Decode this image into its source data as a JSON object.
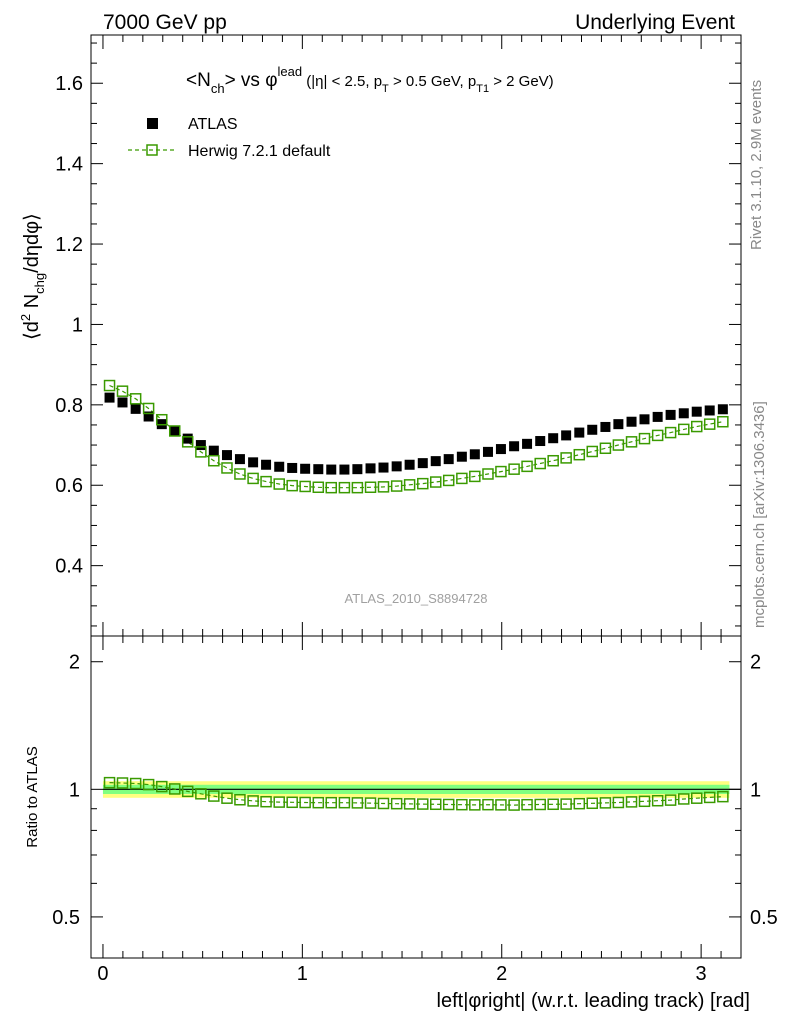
{
  "header": {
    "left": "7000 GeV pp",
    "right": "Underlying Event"
  },
  "side_labels": {
    "top": "Rivet 3.1.10,  2.9M events",
    "bottom": "mcplots.cern.ch [arXiv:1306.3436]"
  },
  "watermark": "ATLAS_2010_S8894728",
  "title": {
    "prefix": "<N",
    "sub1": "ch",
    "mid": "> vs ",
    "phi": "φ",
    "sup": "lead",
    "cond_a": " (|η| < 2.5, p",
    "sub_t": "T",
    "cond_b": " > 0.5 GeV, p",
    "sub_t1": "T1",
    "cond_c": " > 2 GeV)"
  },
  "ylabel_main": {
    "pre": "⟨d",
    "sup2": "2",
    "mid": " N",
    "sub": "chg",
    "post": "/dηdφ⟩"
  },
  "ylabel_ratio": "Ratio to ATLAS",
  "xlabel": "left|φright| (w.r.t. leading track) [rad]",
  "legend": [
    {
      "label": "ATLAS",
      "color": "#000000"
    },
    {
      "label": "Herwig 7.2.1 default",
      "color": "#3a9a00"
    }
  ],
  "colors": {
    "mc": "#3a9a00",
    "band_outer": "#ffff80",
    "band_inner": "#80ff80"
  },
  "chart_data": [
    {
      "panel": "main",
      "type": "scatter",
      "xlim": [
        -0.06,
        3.2
      ],
      "ylim": [
        0.225,
        1.72
      ],
      "y_ticks": [
        0.4,
        0.6,
        0.8,
        1,
        1.2,
        1.4,
        1.6
      ],
      "y_tick_labels": [
        "0.4",
        "0.6",
        "0.8",
        "1",
        "1.2",
        "1.4",
        "1.6"
      ],
      "x": [
        0.033,
        0.098,
        0.164,
        0.229,
        0.295,
        0.36,
        0.425,
        0.491,
        0.556,
        0.622,
        0.687,
        0.753,
        0.818,
        0.884,
        0.949,
        1.014,
        1.08,
        1.145,
        1.211,
        1.276,
        1.342,
        1.407,
        1.473,
        1.538,
        1.604,
        1.669,
        1.734,
        1.8,
        1.865,
        1.931,
        1.996,
        2.062,
        2.127,
        2.193,
        2.258,
        2.323,
        2.389,
        2.454,
        2.52,
        2.585,
        2.651,
        2.716,
        2.782,
        2.847,
        2.913,
        2.978,
        3.043,
        3.109
      ],
      "series": [
        {
          "name": "ATLAS",
          "values": [
            0.818,
            0.806,
            0.79,
            0.771,
            0.752,
            0.734,
            0.716,
            0.7,
            0.686,
            0.675,
            0.665,
            0.657,
            0.651,
            0.646,
            0.643,
            0.641,
            0.64,
            0.639,
            0.639,
            0.64,
            0.642,
            0.644,
            0.647,
            0.651,
            0.655,
            0.66,
            0.665,
            0.671,
            0.677,
            0.683,
            0.69,
            0.697,
            0.703,
            0.71,
            0.717,
            0.724,
            0.731,
            0.738,
            0.745,
            0.752,
            0.758,
            0.764,
            0.77,
            0.775,
            0.779,
            0.783,
            0.786,
            0.789
          ]
        },
        {
          "name": "Herwig 7.2.1 default",
          "values": [
            0.848,
            0.834,
            0.815,
            0.791,
            0.763,
            0.735,
            0.708,
            0.683,
            0.661,
            0.643,
            0.628,
            0.617,
            0.609,
            0.603,
            0.599,
            0.597,
            0.595,
            0.594,
            0.594,
            0.594,
            0.595,
            0.596,
            0.598,
            0.601,
            0.604,
            0.608,
            0.612,
            0.617,
            0.622,
            0.628,
            0.634,
            0.64,
            0.647,
            0.654,
            0.661,
            0.668,
            0.676,
            0.684,
            0.692,
            0.7,
            0.708,
            0.716,
            0.724,
            0.731,
            0.739,
            0.746,
            0.752,
            0.758
          ]
        }
      ]
    },
    {
      "panel": "ratio",
      "type": "scatter",
      "xlim": [
        -0.06,
        3.2
      ],
      "ylim": [
        0.4,
        2.3
      ],
      "log_y": true,
      "y_ticks": [
        0.5,
        1,
        2
      ],
      "y_tick_labels": [
        "0.5",
        "1",
        "2"
      ],
      "x_ticks": [
        0,
        1,
        2,
        3
      ],
      "x_tick_labels": [
        "0",
        "1",
        "2",
        "3"
      ],
      "bands": {
        "outer": [
          0.955,
          1.045
        ],
        "inner": [
          0.975,
          1.025
        ]
      },
      "series": [
        {
          "name": "Herwig 7.2.1 default",
          "values": [
            1.037,
            1.035,
            1.032,
            1.026,
            1.015,
            1.002,
            0.989,
            0.976,
            0.964,
            0.953,
            0.945,
            0.939,
            0.935,
            0.933,
            0.932,
            0.931,
            0.93,
            0.93,
            0.93,
            0.929,
            0.928,
            0.926,
            0.925,
            0.924,
            0.923,
            0.922,
            0.921,
            0.92,
            0.919,
            0.92,
            0.919,
            0.918,
            0.92,
            0.921,
            0.922,
            0.923,
            0.925,
            0.927,
            0.929,
            0.931,
            0.934,
            0.937,
            0.94,
            0.943,
            0.949,
            0.953,
            0.957,
            0.961
          ]
        }
      ]
    }
  ]
}
